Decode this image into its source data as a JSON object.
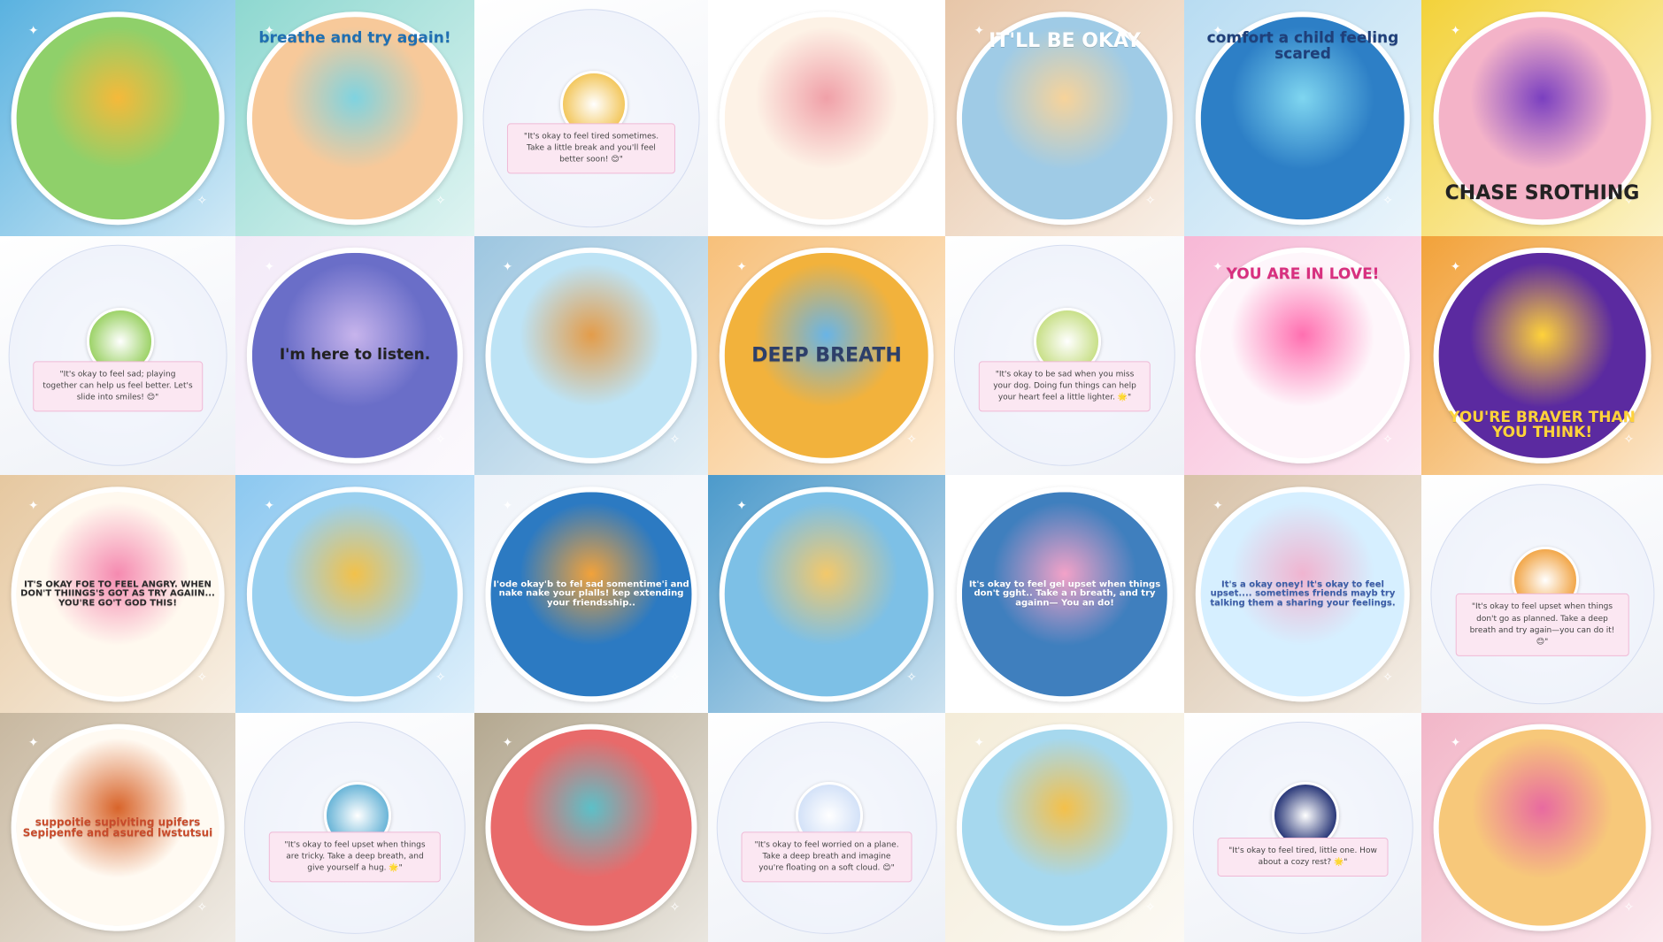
{
  "tiles": [
    {
      "kind": "art",
      "name": "sun-playground-sticker",
      "bg": "#5ab2e0",
      "disc": "#8fd06a",
      "accent": "#f5b93a",
      "caption": ""
    },
    {
      "kind": "art",
      "name": "computer-rainbow-sticker",
      "bg": "#8ed8d0",
      "disc": "#f7c99a",
      "accent": "#7fd3e0",
      "caption": "breathe and try again!",
      "caption_color": "#1f6fb2"
    },
    {
      "kind": "text",
      "name": "text-sticker-tired",
      "thumb": "#f3c860",
      "quote": "\"It's okay to feel tired sometimes. Take a little break and you'll feel better soon! 😊\""
    },
    {
      "kind": "art",
      "name": "puppies-group-sticker",
      "bg": "#ffffff",
      "disc": "#fdf2e6",
      "accent": "#f0a0a8",
      "caption": ""
    },
    {
      "kind": "art",
      "name": "puppy-panda-sticker",
      "bg": "#e7c6a8",
      "disc": "#9fcbe6",
      "accent": "#f7d39a",
      "caption": "IT'LL BE OKAY",
      "caption_color": "#ffffff"
    },
    {
      "kind": "art",
      "name": "plane-ocean-sticker",
      "bg": "#b8dcf2",
      "disc": "#2d7fc6",
      "accent": "#7fd6f0",
      "caption": "comfort a child feeling scared",
      "caption_color": "#1f3f7a"
    },
    {
      "kind": "art",
      "name": "superhero-kid-sticker",
      "bg": "#f3d23a",
      "disc": "#f4b3c8",
      "accent": "#7a3fc0",
      "caption": "CHASE SROTHING",
      "caption_color": "#222222"
    },
    {
      "kind": "text",
      "name": "text-sticker-sad-playing",
      "thumb": "#9ed36a",
      "quote": "\"It's okay to feel sad; playing together can help us feel better. Let's slide into smiles! 😊\""
    },
    {
      "kind": "art",
      "name": "bear-cloud-sticker",
      "bg": "#f3eaf8",
      "disc": "#6a6ec8",
      "accent": "#c7b4ec",
      "caption": "I'm here to listen.",
      "caption_color": "#222222"
    },
    {
      "kind": "art",
      "name": "puppy-sitting-sticker",
      "bg": "#9dc6e0",
      "disc": "#bde3f5",
      "accent": "#e39c4a",
      "caption": ""
    },
    {
      "kind": "art",
      "name": "deep-breath-sticker",
      "bg": "#f7c07a",
      "disc": "#f2b23c",
      "accent": "#69b4e6",
      "caption": "DEEP BREATH",
      "caption_color": "#2d3f6a"
    },
    {
      "kind": "text",
      "name": "text-sticker-miss-dog",
      "thumb": "#c9e08a",
      "quote": "\"It's okay to be sad when you miss your dog. Doing fun things can help your heart feel a little lighter. 🌟\""
    },
    {
      "kind": "art",
      "name": "rainbow-flowers-sticker",
      "bg": "#f7b8d6",
      "disc": "#fef6fb",
      "accent": "#ff6fb0",
      "caption": "YOU ARE IN LOVE!",
      "caption_color": "#d8307f"
    },
    {
      "kind": "art",
      "name": "braver-sticker",
      "bg": "#f2a23a",
      "disc": "#5b2aa0",
      "accent": "#ffd23a",
      "caption": "YOU'RE BRAVER THAN YOU THINK!",
      "caption_color": "#ffd23a"
    },
    {
      "kind": "art",
      "name": "okay-angry-sticker",
      "bg": "#e6c8a0",
      "disc": "#fff9ef",
      "accent": "#f58ab0",
      "caption": "IT'S OKAY FOE TO FEEL ANGRY. WHEN DON'T THIINGS'S GOT AS TRY AGAIIN... YOU'RE GO'T GOD THIS!",
      "caption_color": "#2a2a2a"
    },
    {
      "kind": "art",
      "name": "airplane-sky-sticker",
      "bg": "#8cc8f0",
      "disc": "#9ad0ef",
      "accent": "#f2c14a",
      "caption": ""
    },
    {
      "kind": "art",
      "name": "gamepad-sticker",
      "bg": "#f0f4fa",
      "disc": "#2c7ac2",
      "accent": "#f2a23a",
      "caption": "I'ode okay'b to fel sad somentime'i and nake nake your plalls! kep extending your friendsship..",
      "caption_color": "#ffffff"
    },
    {
      "kind": "art",
      "name": "door-faces-sticker",
      "bg": "#4c9acb",
      "disc": "#7dc0e6",
      "accent": "#f3c86a",
      "caption": ""
    },
    {
      "kind": "art",
      "name": "rainbow-cats-sticker",
      "bg": "#ffffff",
      "disc": "#3f7fbe",
      "accent": "#f3a2c8",
      "caption": "It's okay to feel gel upset when things don't gght.. Take a n breath, and try againn— You an do!",
      "caption_color": "#ffffff"
    },
    {
      "kind": "art",
      "name": "kitten-okay-sticker",
      "bg": "#d8c2a8",
      "disc": "#d6efff",
      "accent": "#f0b4d0",
      "caption": "It's a okay oney! It's okay to feel upset.... sometimes friends mayb try talking them a sharing your feelings.",
      "caption_color": "#3a5da8"
    },
    {
      "kind": "text",
      "name": "text-sticker-upset-plans",
      "thumb": "#f2a84c",
      "quote": "\"It's okay to feel upset when things don't go as planned. Take a deep breath and try again—you can do it! 😊\""
    },
    {
      "kind": "art",
      "name": "girl-squirrel-sticker",
      "bg": "#c8b8a0",
      "disc": "#fffaf2",
      "accent": "#d8642a",
      "caption": "suppoitie  supiviting  upifers  Sepipenfe  and asured  lwstutsui",
      "caption_color": "#c84a2a"
    },
    {
      "kind": "text",
      "name": "text-sticker-upset-tricky",
      "thumb": "#6cb6d8",
      "quote": "\"It's okay to feel upset when things are tricky. Take a deep breath, and give yourself a hug. 🌟\""
    },
    {
      "kind": "art",
      "name": "flowers-hands-sticker",
      "bg": "#b4a890",
      "disc": "#e86a6a",
      "accent": "#5cc0c8",
      "caption": ""
    },
    {
      "kind": "text",
      "name": "text-sticker-plane-worried",
      "thumb": "#d4e2f8",
      "quote": "\"It's okay to feel worried on a plane. Take a deep breath and imagine you're floating on a soft cloud. 😊\""
    },
    {
      "kind": "art",
      "name": "sun-rainbow-dog-sticker",
      "bg": "#f4ecd8",
      "disc": "#a6d8ee",
      "accent": "#f4c04a",
      "caption": ""
    },
    {
      "kind": "text",
      "name": "text-sticker-cozy-rest",
      "thumb": "#2c3a7a",
      "quote": "\"It's okay to feel tired, little one. How about a cozy rest? 🌟\""
    },
    {
      "kind": "art",
      "name": "hamster-rainbow-sticker",
      "bg": "#f2b6c8",
      "disc": "#f7c87a",
      "accent": "#e86aa0",
      "caption": ""
    }
  ]
}
